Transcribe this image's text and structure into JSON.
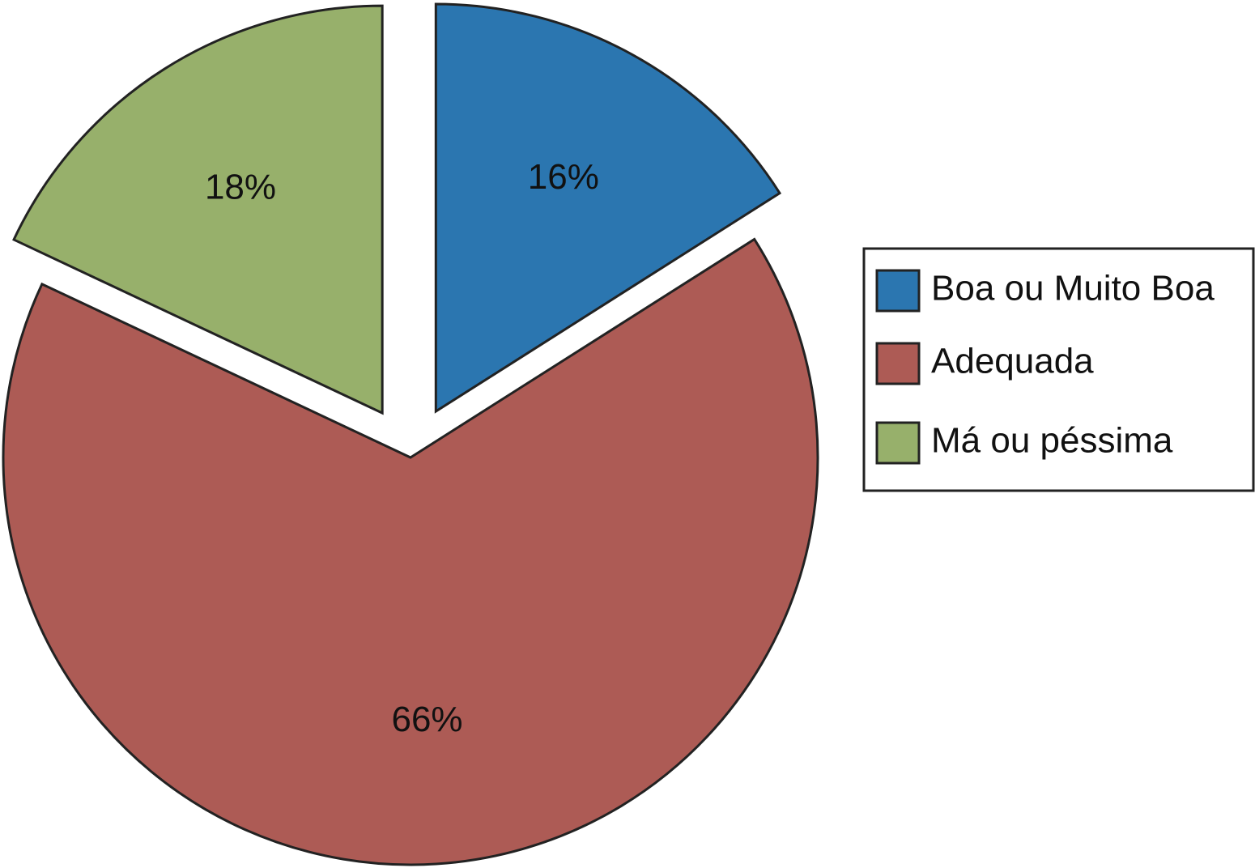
{
  "chart_data": {
    "type": "pie",
    "categories": [
      "Boa ou Muito Boa",
      "Adequada",
      "Má ou péssima"
    ],
    "values": [
      16,
      66,
      18
    ],
    "value_labels": [
      "16%",
      "66%",
      "18%"
    ],
    "colors": [
      "#2b76b0",
      "#ad5b55",
      "#97b06b"
    ],
    "legend": "right"
  }
}
